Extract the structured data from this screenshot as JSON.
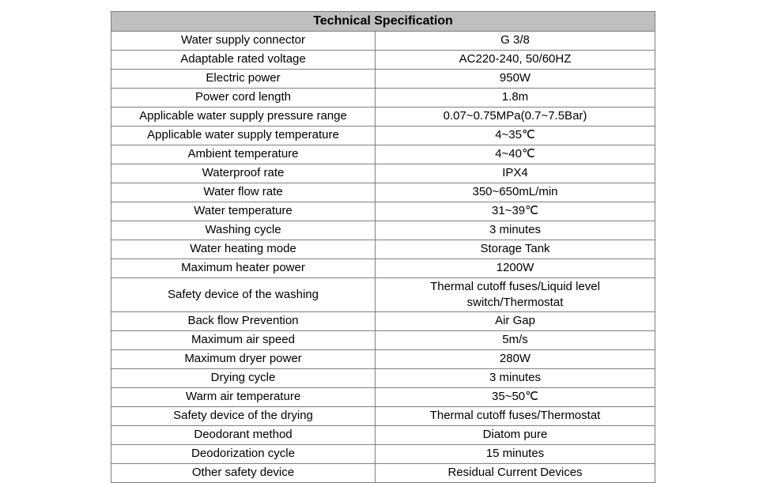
{
  "table": {
    "title": "Technical Specification",
    "rows": [
      {
        "label": "Water supply connector",
        "value": "G  3/8"
      },
      {
        "label": "Adaptable rated voltage",
        "value": "AC220-240, 50/60HZ"
      },
      {
        "label": "Electric power",
        "value": "950W"
      },
      {
        "label": "Power cord length",
        "value": "1.8m"
      },
      {
        "label": "Applicable water supply pressure range",
        "value": "0.07~0.75MPa(0.7~7.5Bar)"
      },
      {
        "label": "Applicable water supply temperature",
        "value": "4~35℃"
      },
      {
        "label": "Ambient temperature",
        "value": "4~40℃"
      },
      {
        "label": "Waterproof rate",
        "value": "IPX4"
      },
      {
        "label": "Water flow rate",
        "value": "350~650mL/min"
      },
      {
        "label": "Water temperature",
        "value": "31~39℃"
      },
      {
        "label": "Washing cycle",
        "value": "3 minutes"
      },
      {
        "label": "Water heating mode",
        "value": "Storage Tank"
      },
      {
        "label": "Maximum heater power",
        "value": "1200W"
      },
      {
        "label": "Safety device of the washing",
        "value": "Thermal cutoff fuses/Liquid level\nswitch/Thermostat"
      },
      {
        "label": "Back flow Prevention",
        "value": "Air Gap"
      },
      {
        "label": "Maximum air speed",
        "value": "5m/s"
      },
      {
        "label": "Maximum dryer power",
        "value": "280W"
      },
      {
        "label": "Drying cycle",
        "value": "3 minutes"
      },
      {
        "label": "Warm air temperature",
        "value": "35~50℃"
      },
      {
        "label": "Safety device of the drying",
        "value": "Thermal cutoff fuses/Thermostat"
      },
      {
        "label": "Deodorant method",
        "value": "Diatom pure"
      },
      {
        "label": "Deodorization cycle",
        "value": "15 minutes"
      },
      {
        "label": "Other safety device",
        "value": "Residual Current Devices"
      }
    ]
  }
}
